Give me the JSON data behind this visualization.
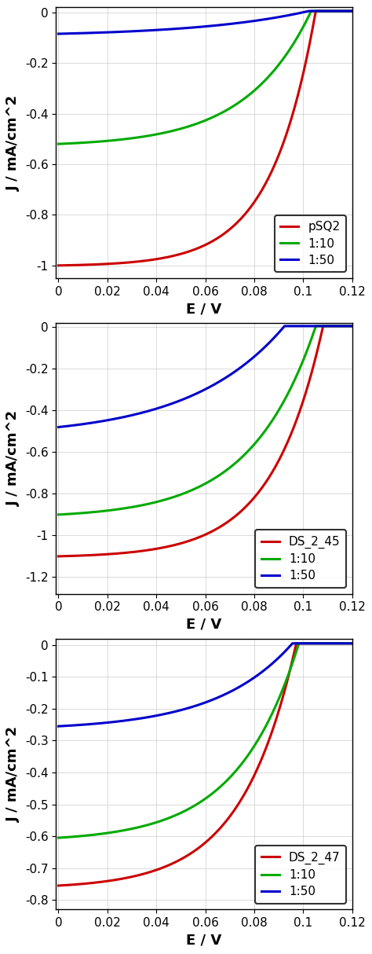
{
  "plots": [
    {
      "legend_label": "pSQ2",
      "curves": [
        {
          "label": "pSQ2",
          "color": "#cc0000",
          "Jsc": -1.0,
          "Voc": 0.105,
          "alpha": 55.0
        },
        {
          "label": "1:10",
          "color": "#00aa00",
          "Jsc": -0.52,
          "Voc": 0.103,
          "alpha": 38.0
        },
        {
          "label": "1:50",
          "color": "#0000cc",
          "Jsc": -0.085,
          "Voc": 0.1,
          "alpha": 22.0
        }
      ],
      "ylim": [
        -1.05,
        0.02
      ],
      "yticks": [
        0,
        -0.2,
        -0.4,
        -0.6,
        -0.8,
        -1.0
      ]
    },
    {
      "legend_label": "DS_2_45",
      "curves": [
        {
          "label": "DS_2_45",
          "color": "#cc0000",
          "Jsc": -1.1,
          "Voc": 0.108,
          "alpha": 48.0
        },
        {
          "label": "1:10",
          "color": "#00aa00",
          "Jsc": -0.9,
          "Voc": 0.105,
          "alpha": 38.0
        },
        {
          "label": "1:50",
          "color": "#0000cc",
          "Jsc": -0.48,
          "Voc": 0.092,
          "alpha": 26.0
        }
      ],
      "ylim": [
        -1.28,
        0.02
      ],
      "yticks": [
        0,
        -0.2,
        -0.4,
        -0.6,
        -0.8,
        -1.0,
        -1.2
      ]
    },
    {
      "legend_label": "DS_2_47",
      "curves": [
        {
          "label": "DS_2_47",
          "color": "#cc0000",
          "Jsc": -0.755,
          "Voc": 0.097,
          "alpha": 45.0
        },
        {
          "label": "1:10",
          "color": "#00aa00",
          "Jsc": -0.605,
          "Voc": 0.098,
          "alpha": 40.0
        },
        {
          "label": "1:50",
          "color": "#0000cc",
          "Jsc": -0.255,
          "Voc": 0.095,
          "alpha": 32.0
        }
      ],
      "ylim": [
        -0.83,
        0.02
      ],
      "yticks": [
        0,
        -0.1,
        -0.2,
        -0.3,
        -0.4,
        -0.5,
        -0.6,
        -0.7,
        -0.8
      ]
    }
  ],
  "xlabel": "E / V",
  "ylabel": "J / mA/cm^2",
  "xlim": [
    -0.001,
    0.12
  ],
  "xticks": [
    0,
    0.02,
    0.04,
    0.06,
    0.08,
    0.1,
    0.12
  ],
  "linewidth": 2.2,
  "label_font_size": 13,
  "tick_font_size": 11,
  "legend_font_size": 11
}
